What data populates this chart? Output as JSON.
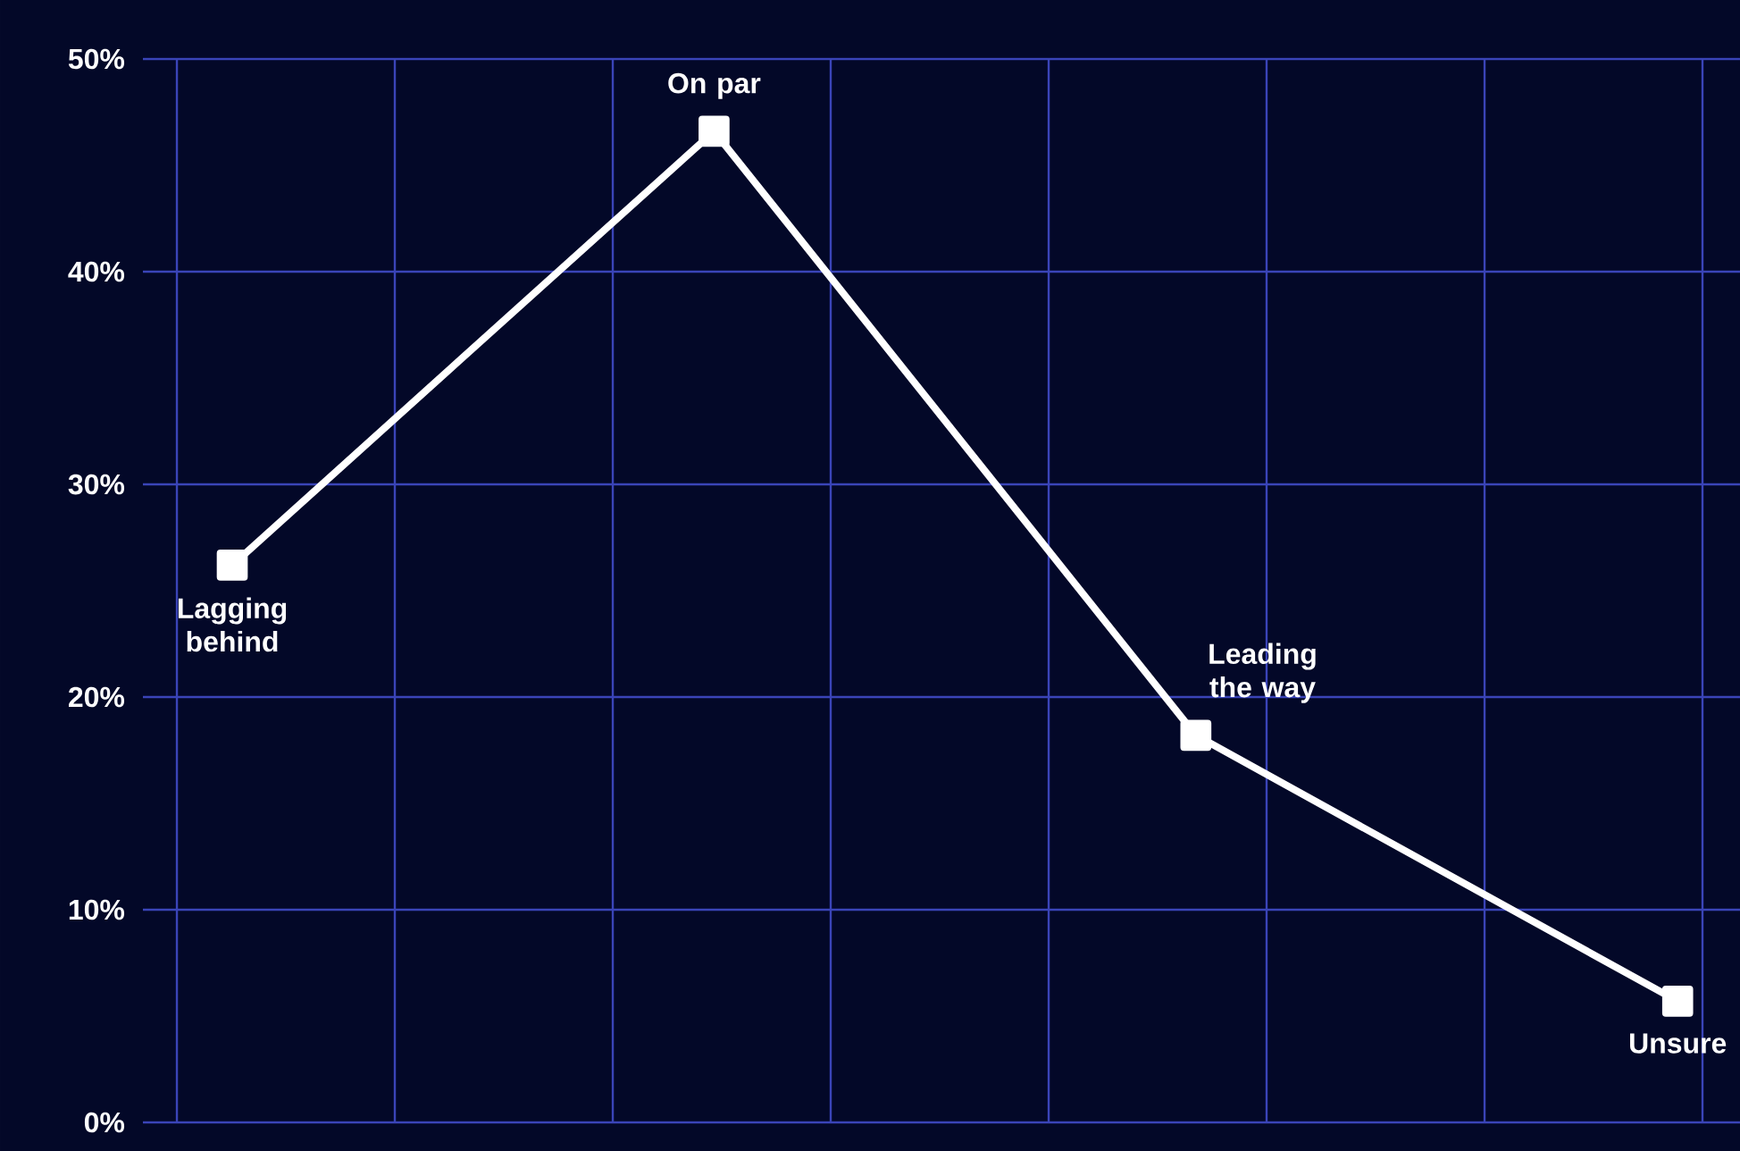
{
  "chart_data": {
    "type": "line",
    "categories": [
      "Lagging behind",
      "On par",
      "Leading the way",
      "Unsure"
    ],
    "series": [
      {
        "color": "#ffffff",
        "values": [
          26.2,
          46.6,
          18.2,
          5.7
        ]
      }
    ],
    "ylim": [
      0,
      50
    ],
    "yticks": [
      {
        "value": 0,
        "label": "0%"
      },
      {
        "value": 10,
        "label": "10%"
      },
      {
        "value": 20,
        "label": "20%"
      },
      {
        "value": 30,
        "label": "30%"
      },
      {
        "value": 40,
        "label": "40%"
      },
      {
        "value": 50,
        "label": "50%"
      }
    ],
    "grid": true,
    "marker": "square",
    "line_style": "solid"
  }
}
